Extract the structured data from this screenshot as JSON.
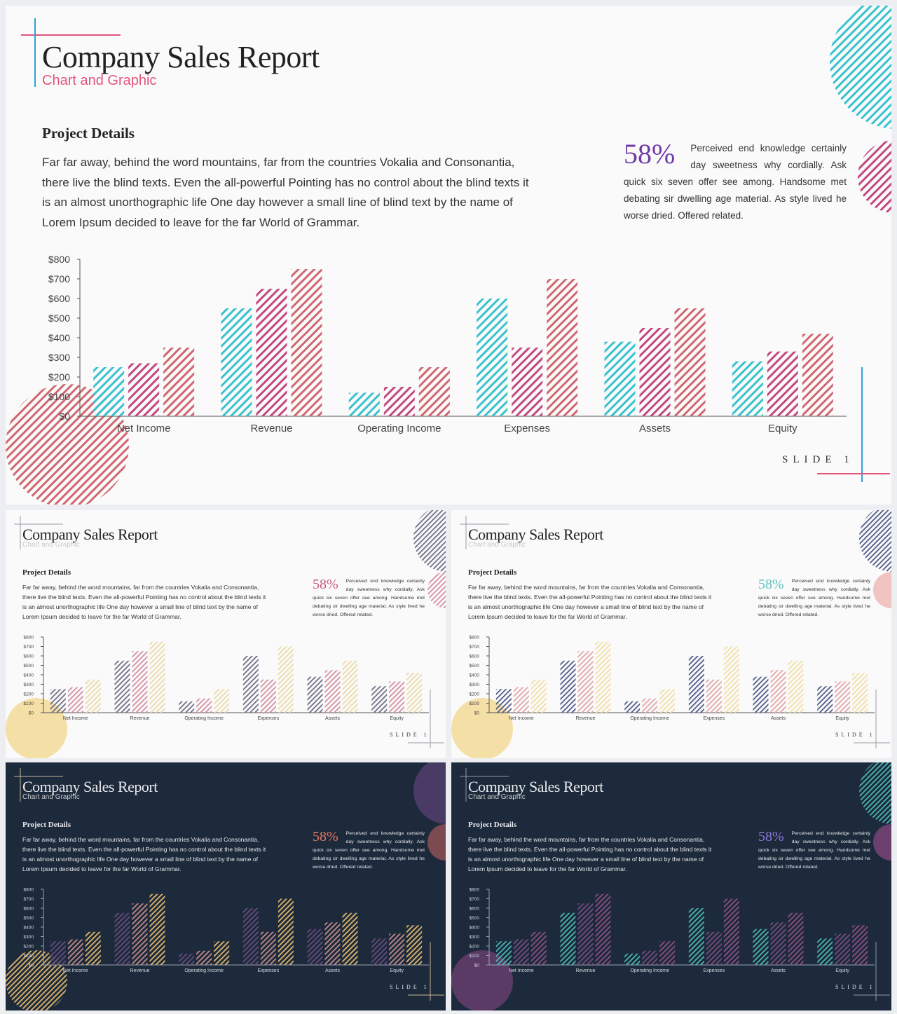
{
  "slides": [
    {
      "theme": "main",
      "title": "Company Sales Report",
      "subtitle": "Chart and Graphic",
      "section": "Project Details",
      "body": "Far far away, behind the word mountains, far from the countries Vokalia and Consonantia, there live the blind texts. Even the all-powerful Pointing has no control about the blind texts it is an almost unorthographic life One day however a small line of blind text by the name of Lorem Ipsum decided to leave for the far World of Grammar.",
      "stat_value": "58%",
      "stat_text": "Perceived end knowledge certainly day sweetness why cordially. Ask quick six seven offer see among. Handsome met debating sir dwelling age material. As style lived he worse dried. Offered related.",
      "slide_label": "SLIDE 1",
      "colors": {
        "background": "#fafafb",
        "series": [
          "#38c2cd",
          "#c2497e",
          "#d0676f"
        ],
        "accent_pink": "#e2557a",
        "accent_blue": "#2fa3d9",
        "percent": "#6f3aa8"
      }
    },
    {
      "theme": "light-1",
      "title": "Company Sales Report",
      "subtitle": "Chart and Graphic",
      "section": "Project Details",
      "body": "Far far away, behind the word mountains, far from the countries Vokalia and Consonantia, there live the blind texts. Even the all-powerful Pointing has no control about the blind texts it is an almost unorthographic life One day however a small line of blind text by the name of Lorem Ipsum decided to leave for the far World of Grammar.",
      "stat_value": "58%",
      "stat_text": "Perceived end knowledge certainly day sweetness why cordially. Ask quick six seven offer see among. Handsome met debating sir dwelling age material. As style lived he worse dried. Offered related.",
      "slide_label": "SLIDE 1",
      "colors": {
        "background": "#fafafb",
        "series": [
          "#6d6e86",
          "#d58ea0",
          "#ecd9a6"
        ],
        "percent": "#c75877"
      }
    },
    {
      "theme": "light-2",
      "title": "Company Sales Report",
      "subtitle": "Chart and Graphic",
      "section": "Project Details",
      "body": "Far far away, behind the word mountains, far from the countries Vokalia and Consonantia, there live the blind texts. Even the all-powerful Pointing has no control about the blind texts it is an almost unorthographic life One day however a small line of blind text by the name of Lorem Ipsum decided to leave for the far World of Grammar.",
      "stat_value": "58%",
      "stat_text": "Perceived end knowledge certainly day sweetness why cordially. Ask quick six seven offer see among. Handsome met debating sir dwelling age material. As style lived he worse dried. Offered related.",
      "slide_label": "SLIDE 1",
      "colors": {
        "background": "#fafafb",
        "series": [
          "#4f5a88",
          "#e3a5a5",
          "#f1dfa2"
        ],
        "percent": "#5fc3bd"
      }
    },
    {
      "theme": "dark-1",
      "title": "Company Sales Report",
      "subtitle": "Chart and Graphic",
      "section": "Project Details",
      "body": "Far far away, behind the word mountains, far from the countries Vokalia and Consonantia, there live the blind texts. Even the all-powerful Pointing has no control about the blind texts it is an almost unorthographic life One day however a small line of blind text by the name of Lorem Ipsum decided to leave for the far World of Grammar.",
      "stat_value": "58%",
      "stat_text": "Perceived end knowledge certainly day sweetness why cordially. Ask quick six seven offer see among. Handsome met debating sir dwelling age material. As style lived he worse dried. Offered related.",
      "slide_label": "SLIDE 1",
      "colors": {
        "background": "#1c2a3b",
        "series": [
          "#6a4b7f",
          "#c48b8a",
          "#e3b76c"
        ],
        "percent": "#e3775f"
      }
    },
    {
      "theme": "dark-2",
      "title": "Company Sales Report",
      "subtitle": "Chart and Graphic",
      "section": "Project Details",
      "body": "Far far away, behind the word mountains, far from the countries Vokalia and Consonantia, there live the blind texts. Even the all-powerful Pointing has no control about the blind texts it is an almost unorthographic life One day however a small line of blind text by the name of Lorem Ipsum decided to leave for the far World of Grammar.",
      "stat_value": "58%",
      "stat_text": "Perceived end knowledge certainly day sweetness why cordially. Ask quick six seven offer see among. Handsome met debating sir dwelling age material. As style lived he worse dried. Offered related.",
      "slide_label": "SLIDE 1",
      "colors": {
        "background": "#1c2a3b",
        "series": [
          "#4bb8b3",
          "#7a4c7e",
          "#8f4f86"
        ],
        "percent": "#8a77d8"
      }
    }
  ],
  "chart_data": {
    "type": "bar",
    "categories": [
      "Net Income",
      "Revenue",
      "Operating Income",
      "Expenses",
      "Assets",
      "Equity"
    ],
    "series": [
      {
        "values": [
          250,
          550,
          120,
          600,
          380,
          280
        ]
      },
      {
        "values": [
          270,
          650,
          150,
          350,
          450,
          330
        ]
      },
      {
        "values": [
          350,
          750,
          250,
          700,
          550,
          420
        ]
      }
    ],
    "ylim": [
      0,
      800
    ],
    "y_ticks": [
      0,
      100,
      200,
      300,
      400,
      500,
      600,
      700,
      800
    ],
    "y_tick_labels": [
      "$0",
      "$100",
      "$200",
      "$300",
      "$400",
      "$500",
      "$600",
      "$700",
      "$800"
    ],
    "grid": false,
    "legend": "none",
    "bar_fill": "diagonal-hatch"
  }
}
